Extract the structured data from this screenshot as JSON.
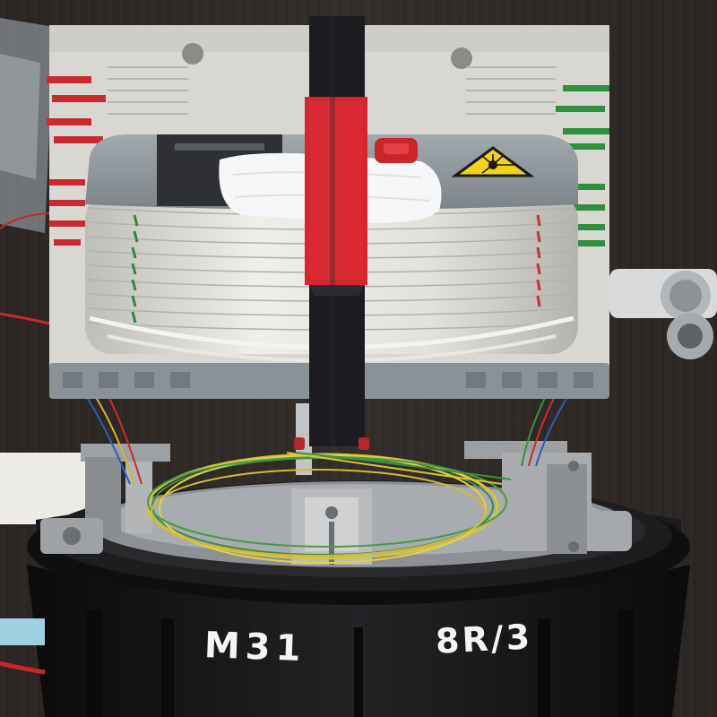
{
  "photo": {
    "subject": "fiber-optic-splice-closure",
    "labels": {
      "left_marking": "M31",
      "right_marking": "8R/3"
    },
    "colors": {
      "background_wood": "#2b2623",
      "tray_body": "#d9d7d2",
      "tray_cap": "#8e969c",
      "strap_red": "#d4262f",
      "strap_black": "#1c1c20",
      "dome_black": "#141416",
      "fiber_yellow": "#d8c23a",
      "fiber_green": "#3c8f3c",
      "warning_yellow": "#f2d21b"
    },
    "icons": [
      "laser-warning-icon",
      "red-release-button"
    ]
  }
}
